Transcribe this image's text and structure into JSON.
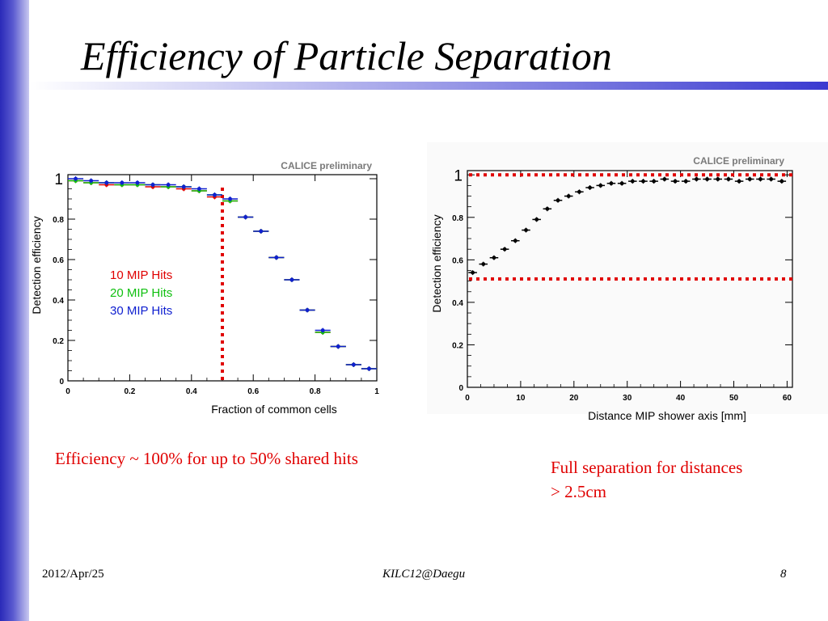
{
  "slide": {
    "title": "Efficiency of Particle Separation",
    "caption_left": "Efficiency ~ 100% for up to 50% shared hits",
    "caption_right": "Full separation for distances > 2.5cm",
    "footer": {
      "date": "2012/Apr/25",
      "event": "KILC12@Daegu",
      "page": "8"
    },
    "colors": {
      "accent": "#e00000",
      "sidebar": "#2a2ab8",
      "title_rule": "#3a3ad0"
    }
  },
  "chart_data": [
    {
      "type": "scatter",
      "title": "CALICE preliminary",
      "xlabel": "Fraction of common cells",
      "ylabel": "Detection efficiency",
      "xlim": [
        0,
        1
      ],
      "ylim": [
        0,
        1.02
      ],
      "x_ticks": [
        "0",
        "0.2",
        "0.4",
        "0.6",
        "0.8",
        "1"
      ],
      "y_ticks": [
        "0",
        "0.2",
        "0.4",
        "0.6",
        "0.8",
        "1"
      ],
      "x_tick_values": [
        0,
        0.2,
        0.4,
        0.6,
        0.8,
        1
      ],
      "y_tick_values": [
        0,
        0.2,
        0.4,
        0.6,
        0.8,
        1
      ],
      "grid": false,
      "legend_position": "middle-left",
      "vline": {
        "x": 0.5,
        "color": "#e00000",
        "style": "dotted"
      },
      "x_err": 0.025,
      "series": [
        {
          "name": "10 MIP Hits",
          "color": "#e00000",
          "x": [
            0.025,
            0.075,
            0.125,
            0.175,
            0.225,
            0.275,
            0.325,
            0.375,
            0.425,
            0.475,
            0.525,
            0.575,
            0.625,
            0.675,
            0.725,
            0.775,
            0.825,
            0.875,
            0.925,
            0.975
          ],
          "y": [
            0.99,
            0.98,
            0.97,
            0.97,
            0.97,
            0.96,
            0.96,
            0.95,
            0.94,
            0.91,
            0.89,
            0.81,
            0.74,
            0.61,
            0.5,
            0.35,
            0.24,
            0.17,
            0.08,
            0.06
          ]
        },
        {
          "name": "20 MIP Hits",
          "color": "#10c010",
          "x": [
            0.025,
            0.075,
            0.125,
            0.175,
            0.225,
            0.275,
            0.325,
            0.375,
            0.425,
            0.475,
            0.525,
            0.575,
            0.625,
            0.675,
            0.725,
            0.775,
            0.825,
            0.875,
            0.925,
            0.975
          ],
          "y": [
            0.99,
            0.98,
            0.98,
            0.97,
            0.97,
            0.97,
            0.96,
            0.96,
            0.94,
            0.92,
            0.89,
            0.81,
            0.74,
            0.61,
            0.5,
            0.35,
            0.24,
            0.17,
            0.08,
            0.06
          ]
        },
        {
          "name": "30 MIP Hits",
          "color": "#1020d0",
          "x": [
            0.025,
            0.075,
            0.125,
            0.175,
            0.225,
            0.275,
            0.325,
            0.375,
            0.425,
            0.475,
            0.525,
            0.575,
            0.625,
            0.675,
            0.725,
            0.775,
            0.825,
            0.875,
            0.925,
            0.975
          ],
          "y": [
            1.0,
            0.99,
            0.98,
            0.98,
            0.98,
            0.97,
            0.97,
            0.96,
            0.95,
            0.92,
            0.9,
            0.81,
            0.74,
            0.61,
            0.5,
            0.35,
            0.25,
            0.17,
            0.08,
            0.06
          ]
        }
      ]
    },
    {
      "type": "scatter",
      "title": "CALICE preliminary",
      "xlabel": "Distance MIP shower axis [mm]",
      "ylabel": "Detection efficiency",
      "xlim": [
        0,
        61
      ],
      "ylim": [
        0,
        1.02
      ],
      "x_ticks": [
        "0",
        "10",
        "20",
        "30",
        "40",
        "50",
        "60"
      ],
      "y_ticks": [
        "0",
        "0.2",
        "0.4",
        "0.6",
        "0.8",
        "1"
      ],
      "x_tick_values": [
        0,
        10,
        20,
        30,
        40,
        50,
        60
      ],
      "y_tick_values": [
        0,
        0.2,
        0.4,
        0.6,
        0.8,
        1
      ],
      "grid": false,
      "hlines": [
        {
          "y": 1.0,
          "color": "#e00000",
          "style": "dotted"
        },
        {
          "y": 0.51,
          "color": "#e00000",
          "style": "dotted"
        }
      ],
      "x_err": 0.8,
      "series": [
        {
          "name": "",
          "color": "#000000",
          "x": [
            1,
            3,
            5,
            7,
            9,
            11,
            13,
            15,
            17,
            19,
            21,
            23,
            25,
            27,
            29,
            31,
            33,
            35,
            37,
            39,
            41,
            43,
            45,
            47,
            49,
            51,
            53,
            55,
            57,
            59
          ],
          "y": [
            0.54,
            0.58,
            0.61,
            0.65,
            0.69,
            0.74,
            0.79,
            0.84,
            0.88,
            0.9,
            0.92,
            0.94,
            0.95,
            0.96,
            0.96,
            0.97,
            0.97,
            0.97,
            0.98,
            0.97,
            0.97,
            0.98,
            0.98,
            0.98,
            0.98,
            0.97,
            0.98,
            0.98,
            0.98,
            0.97
          ]
        }
      ]
    }
  ]
}
